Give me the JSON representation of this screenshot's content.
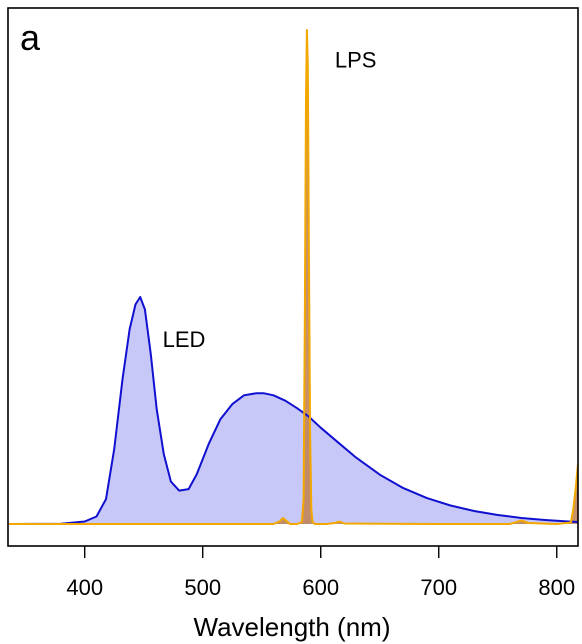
{
  "chart_data": {
    "type": "area",
    "panel_label": "a",
    "title": "",
    "xlabel": "Wavelength (nm)",
    "ylabel": "",
    "xlim": [
      335,
      818
    ],
    "ylim": [
      0,
      1.05
    ],
    "x_ticks": [
      400,
      500,
      600,
      700,
      800
    ],
    "y_ticks": [],
    "grid": false,
    "legend": "none",
    "annotations": [
      {
        "text": "LPS",
        "x": 612,
        "y": 0.915
      },
      {
        "text": "LED",
        "x": 466,
        "y": 0.355
      }
    ],
    "series": [
      {
        "label": "LED",
        "color": "#1010d0",
        "fill": "#c8c8f8",
        "x": [
          335,
          380,
          400,
          410,
          418,
          425,
          432,
          438,
          443,
          447,
          451,
          456,
          461,
          467,
          473,
          480,
          488,
          495,
          505,
          515,
          525,
          535,
          545,
          552,
          560,
          570,
          580,
          590,
          600,
          615,
          630,
          650,
          670,
          690,
          710,
          730,
          750,
          770,
          790,
          810,
          818
        ],
        "y": [
          0,
          0.0005,
          0.005,
          0.015,
          0.05,
          0.15,
          0.29,
          0.39,
          0.44,
          0.455,
          0.43,
          0.34,
          0.23,
          0.14,
          0.085,
          0.067,
          0.07,
          0.1,
          0.16,
          0.21,
          0.24,
          0.258,
          0.262,
          0.262,
          0.258,
          0.247,
          0.232,
          0.215,
          0.193,
          0.163,
          0.133,
          0.099,
          0.072,
          0.052,
          0.037,
          0.026,
          0.018,
          0.012,
          0.008,
          0.005,
          0.004
        ]
      },
      {
        "label": "LPS",
        "color": "#f2a800",
        "fill": "#c0845a",
        "x": [
          335,
          560,
          565,
          568,
          571,
          574,
          580,
          584,
          585.5,
          586.5,
          587.5,
          588.3,
          589,
          590,
          591,
          592,
          593,
          595,
          605,
          612,
          616,
          620,
          700,
          760,
          766,
          770,
          776,
          800,
          812,
          814,
          816,
          818
        ],
        "y": [
          0,
          0,
          0.005,
          0.012,
          0.006,
          0.0,
          0.0,
          0.004,
          0.05,
          0.4,
          0.85,
          0.99,
          0.92,
          0.55,
          0.18,
          0.03,
          0.004,
          0,
          0,
          0.002,
          0.005,
          0.001,
          0,
          0,
          0.004,
          0.007,
          0.002,
          0,
          0.003,
          0.03,
          0.07,
          0.12
        ]
      }
    ]
  }
}
